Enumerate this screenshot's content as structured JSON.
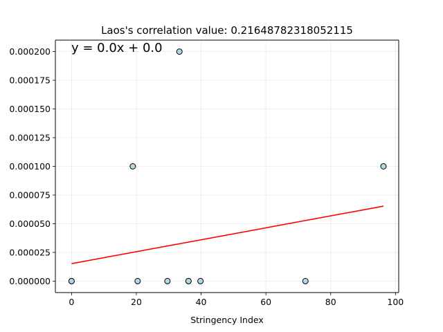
{
  "chart_data": {
    "type": "scatter",
    "title": "Laos's correlation value: 0.21648782318052115",
    "xlabel": "Stringency Index",
    "ylabel": "",
    "xlim": [
      -5,
      101
    ],
    "ylim": [
      -1e-05,
      0.00021
    ],
    "xticks": [
      0,
      20,
      40,
      60,
      80,
      100
    ],
    "xtick_labels": [
      "0",
      "20",
      "40",
      "60",
      "80",
      "100"
    ],
    "yticks": [
      0,
      2.5e-05,
      5e-05,
      7.5e-05,
      0.0001,
      0.000125,
      0.00015,
      0.000175,
      0.0002
    ],
    "ytick_labels": [
      "0.000000",
      "0.000025",
      "0.000050",
      "0.000075",
      "0.000100",
      "0.000125",
      "0.000150",
      "0.000175",
      "0.000200"
    ],
    "grid": true,
    "points": [
      {
        "x": 0,
        "y": 0
      },
      {
        "x": 0,
        "y": 0
      },
      {
        "x": 18.9,
        "y": 0.0001
      },
      {
        "x": 20.4,
        "y": 0
      },
      {
        "x": 29.6,
        "y": 0
      },
      {
        "x": 33.3,
        "y": 0.0002
      },
      {
        "x": 36.1,
        "y": 0
      },
      {
        "x": 36.1,
        "y": 0
      },
      {
        "x": 39.8,
        "y": 0
      },
      {
        "x": 72.2,
        "y": 0
      },
      {
        "x": 96.3,
        "y": 0.0001
      }
    ],
    "trendline": {
      "x": [
        0,
        96.3
      ],
      "y": [
        1.52e-05,
        6.53e-05
      ],
      "color": "#ff0000"
    },
    "equation_text": "y = 0.0x + 0.0",
    "point_fill": "#add8e6",
    "point_edge": "#000000"
  }
}
